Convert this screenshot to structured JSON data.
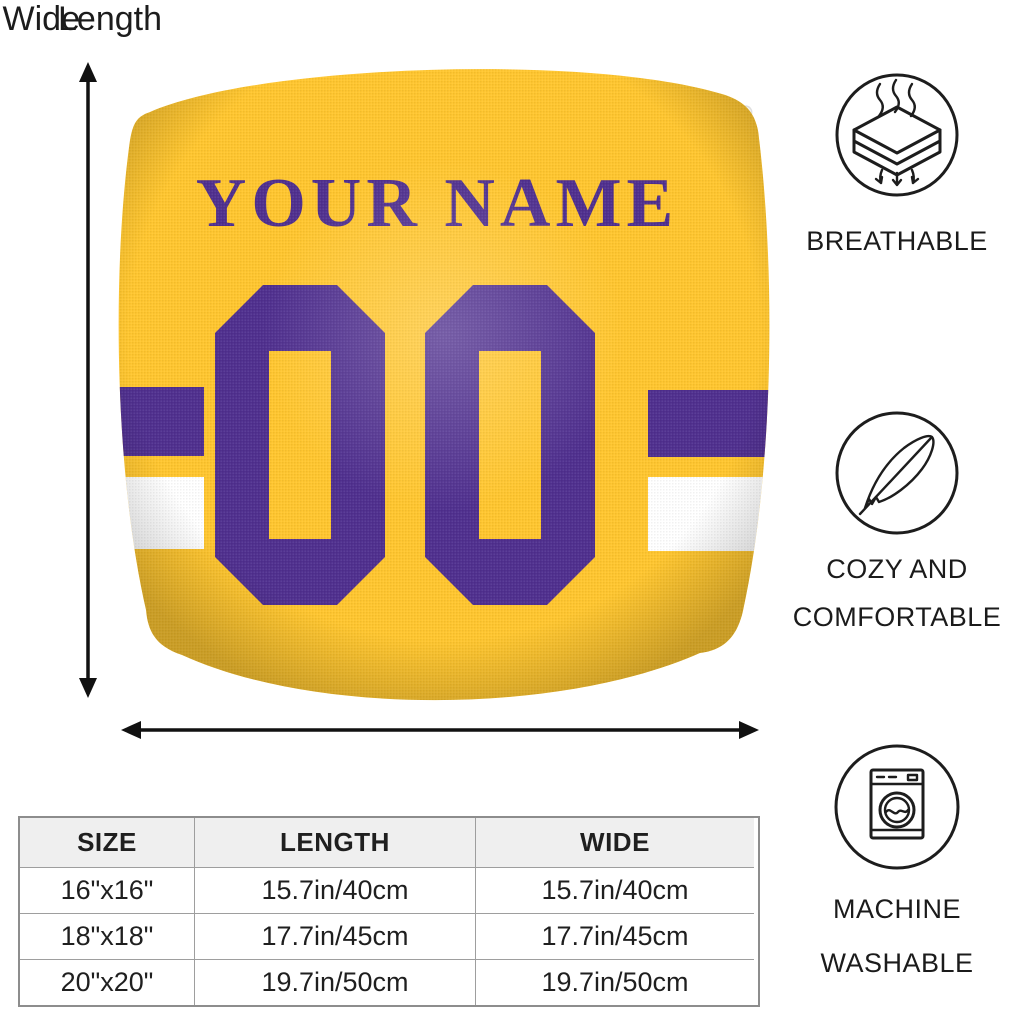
{
  "dimensions": {
    "wide_label": "Wide",
    "length_label": "Length"
  },
  "pillow": {
    "name_text": "YOUR NAME",
    "number": "00",
    "gold": "#FFC62F",
    "purple": "#50308F",
    "stripe_white": "#FFFFFF"
  },
  "features": [
    {
      "icon": "breathable-icon",
      "lines": [
        "BREATHABLE"
      ]
    },
    {
      "icon": "feather-icon",
      "lines": [
        "COZY AND",
        "COMFORTABLE"
      ]
    },
    {
      "icon": "washing-machine-icon",
      "lines": [
        "MACHINE",
        "WASHABLE"
      ]
    }
  ],
  "size_table": {
    "headers": [
      "SIZE",
      "LENGTH",
      "WIDE"
    ],
    "rows": [
      [
        "16\"x16\"",
        "15.7in/40cm",
        "15.7in/40cm"
      ],
      [
        "18\"x18\"",
        "17.7in/45cm",
        "17.7in/45cm"
      ],
      [
        "20\"x20\"",
        "19.7in/50cm",
        "19.7in/50cm"
      ]
    ]
  }
}
